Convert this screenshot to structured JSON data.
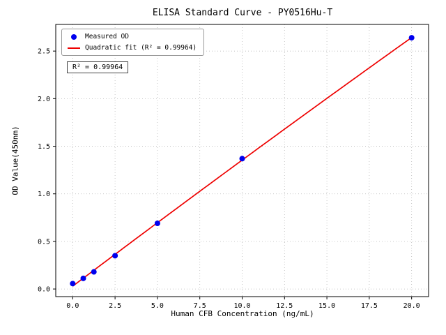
{
  "figure": {
    "annotation": "R² = 0.99964",
    "background_color": "#ffffff"
  },
  "chart_data": {
    "type": "scatter",
    "title": "ELISA Standard Curve - PY0516Hu-T",
    "xlabel": "Human CFB Concentration (ng/mL)",
    "ylabel": "OD Value(450nm)",
    "xlim": [
      -1,
      21
    ],
    "ylim": [
      -0.08,
      2.78
    ],
    "xticks": [
      0.0,
      2.5,
      5.0,
      7.5,
      10.0,
      12.5,
      15.0,
      17.5,
      20.0
    ],
    "yticks": [
      0.0,
      0.5,
      1.0,
      1.5,
      2.0,
      2.5
    ],
    "grid": true,
    "grid_style": "dotted",
    "legend_position": "upper-left",
    "r_squared": 0.99964,
    "series": [
      {
        "name": "Measured OD",
        "type": "scatter",
        "color": "#0000ee",
        "x": [
          0,
          0.625,
          1.25,
          2.5,
          5,
          10,
          20
        ],
        "y": [
          0.057,
          0.112,
          0.18,
          0.35,
          0.69,
          1.37,
          2.64
        ]
      },
      {
        "name": "Quadratic fit (R² = 0.99964)",
        "type": "line",
        "color": "#ee0000",
        "fit_coefficients": {
          "a": -0.000183,
          "b": 0.1343,
          "c": 0.0296
        },
        "x_range": [
          0,
          20
        ]
      }
    ]
  }
}
